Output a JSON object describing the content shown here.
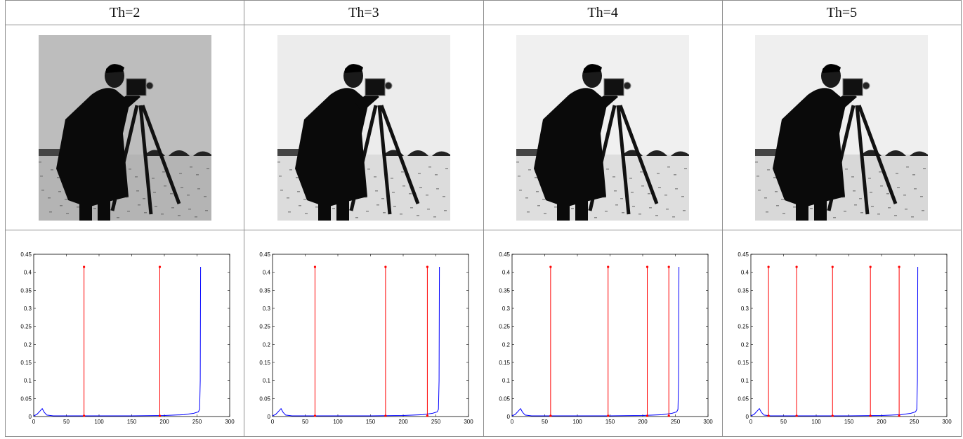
{
  "headers": [
    "Th=2",
    "Th=3",
    "Th=4",
    "Th=5"
  ],
  "images": [
    {
      "name": "cameraman-th2",
      "background": "#bdbdbd",
      "ground": "#b4b4b4"
    },
    {
      "name": "cameraman-th3",
      "background": "#ececec",
      "ground": "#dcdcdc"
    },
    {
      "name": "cameraman-th4",
      "background": "#f0f0f0",
      "ground": "#dedede"
    },
    {
      "name": "cameraman-th5",
      "background": "#efefef",
      "ground": "#d8d8d8"
    }
  ],
  "chart_data": [
    {
      "type": "line",
      "xlim": [
        0,
        300
      ],
      "ylim": [
        0,
        0.45
      ],
      "xticks": [
        0,
        50,
        100,
        150,
        200,
        250,
        300
      ],
      "yticks": [
        0,
        0.05,
        0.1,
        0.15,
        0.2,
        0.25,
        0.3,
        0.35,
        0.4,
        0.45
      ],
      "ytick_labels": [
        "0",
        "0.05",
        "0.1",
        "0.15",
        "0.2",
        "0.25",
        "0.3",
        "0.35",
        "0.4",
        "0.45"
      ],
      "series": [
        {
          "color": "#0000ff",
          "x": [
            0,
            5,
            10,
            13,
            16,
            20,
            30,
            50,
            100,
            150,
            200,
            230,
            245,
            252,
            254,
            255,
            255.5
          ],
          "y": [
            0.002,
            0.006,
            0.016,
            0.022,
            0.012,
            0.004,
            0.002,
            0.002,
            0.002,
            0.002,
            0.003,
            0.005,
            0.009,
            0.013,
            0.02,
            0.1,
            0.415
          ]
        }
      ],
      "thresholds": {
        "color": "#ff0000",
        "height": 0.415,
        "x": [
          77,
          193
        ]
      }
    },
    {
      "type": "line",
      "xlim": [
        0,
        300
      ],
      "ylim": [
        0,
        0.45
      ],
      "xticks": [
        0,
        50,
        100,
        150,
        200,
        250,
        300
      ],
      "yticks": [
        0,
        0.05,
        0.1,
        0.15,
        0.2,
        0.25,
        0.3,
        0.35,
        0.4,
        0.45
      ],
      "ytick_labels": [
        "0",
        "0.05",
        "0.1",
        "0.15",
        "0.2",
        "0.25",
        "0.3",
        "0.35",
        "0.4",
        "0.45"
      ],
      "series": [
        {
          "color": "#0000ff",
          "x": [
            0,
            5,
            10,
            13,
            16,
            20,
            30,
            50,
            100,
            150,
            200,
            230,
            245,
            252,
            254,
            255,
            255.5
          ],
          "y": [
            0.002,
            0.006,
            0.016,
            0.022,
            0.012,
            0.004,
            0.002,
            0.002,
            0.002,
            0.002,
            0.003,
            0.005,
            0.009,
            0.013,
            0.02,
            0.1,
            0.415
          ]
        }
      ],
      "thresholds": {
        "color": "#ff0000",
        "height": 0.415,
        "x": [
          65,
          173,
          237
        ]
      }
    },
    {
      "type": "line",
      "xlim": [
        0,
        300
      ],
      "ylim": [
        0,
        0.45
      ],
      "xticks": [
        0,
        50,
        100,
        150,
        200,
        250,
        300
      ],
      "yticks": [
        0,
        0.05,
        0.1,
        0.15,
        0.2,
        0.25,
        0.3,
        0.35,
        0.4,
        0.45
      ],
      "ytick_labels": [
        "0",
        "0.05",
        "0.1",
        "0.15",
        "0.2",
        "0.25",
        "0.3",
        "0.35",
        "0.4",
        "0.45"
      ],
      "series": [
        {
          "color": "#0000ff",
          "x": [
            0,
            5,
            10,
            13,
            16,
            20,
            30,
            50,
            100,
            150,
            200,
            230,
            245,
            252,
            254,
            255,
            255.5
          ],
          "y": [
            0.002,
            0.006,
            0.016,
            0.022,
            0.012,
            0.004,
            0.002,
            0.002,
            0.002,
            0.002,
            0.003,
            0.005,
            0.009,
            0.013,
            0.02,
            0.1,
            0.415
          ]
        }
      ],
      "thresholds": {
        "color": "#ff0000",
        "height": 0.415,
        "x": [
          59,
          147,
          207,
          240
        ]
      }
    },
    {
      "type": "line",
      "xlim": [
        0,
        300
      ],
      "ylim": [
        0,
        0.45
      ],
      "xticks": [
        0,
        50,
        100,
        150,
        200,
        250,
        300
      ],
      "yticks": [
        0,
        0.05,
        0.1,
        0.15,
        0.2,
        0.25,
        0.3,
        0.35,
        0.4,
        0.45
      ],
      "ytick_labels": [
        "0",
        "0.05",
        "0.1",
        "0.15",
        "0.2",
        "0.25",
        "0.3",
        "0.35",
        "0.4",
        "0.45"
      ],
      "series": [
        {
          "color": "#0000ff",
          "x": [
            0,
            5,
            10,
            13,
            16,
            20,
            30,
            50,
            100,
            150,
            200,
            230,
            245,
            252,
            254,
            255,
            255.5
          ],
          "y": [
            0.002,
            0.006,
            0.016,
            0.022,
            0.012,
            0.004,
            0.002,
            0.002,
            0.002,
            0.002,
            0.003,
            0.005,
            0.009,
            0.013,
            0.02,
            0.1,
            0.415
          ]
        }
      ],
      "thresholds": {
        "color": "#ff0000",
        "height": 0.415,
        "x": [
          27,
          70,
          125,
          183,
          227
        ]
      }
    }
  ]
}
